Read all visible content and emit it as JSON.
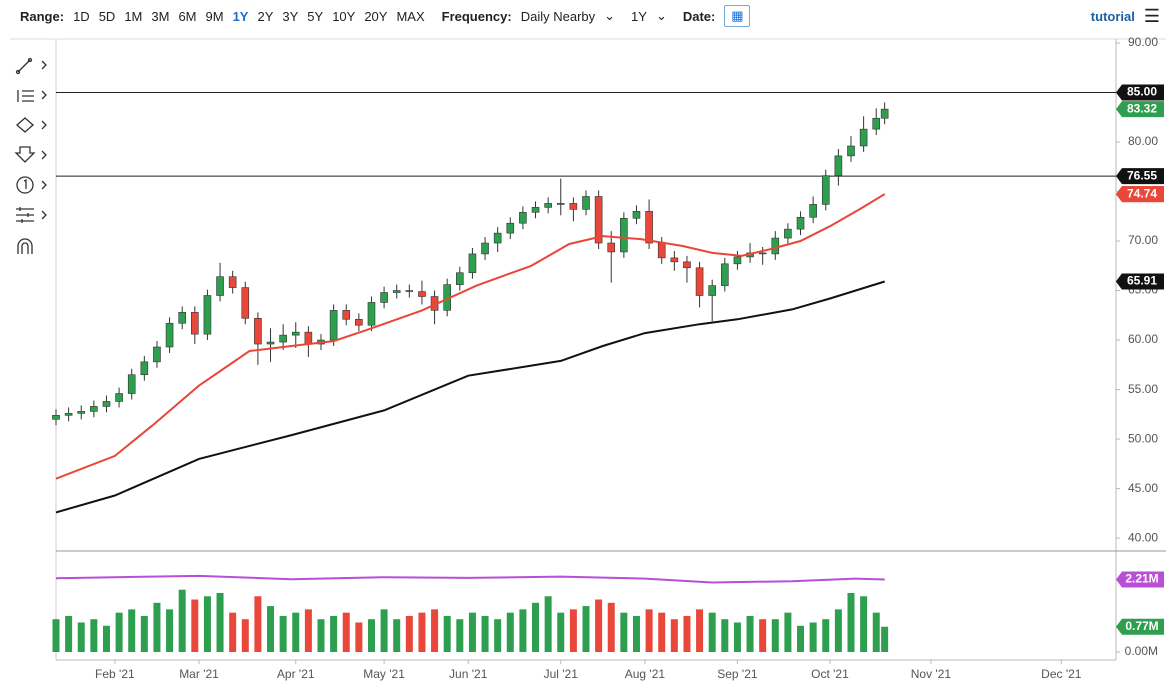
{
  "toolbar": {
    "range_label": "Range:",
    "ranges": [
      "1D",
      "5D",
      "1M",
      "3M",
      "6M",
      "9M",
      "1Y",
      "2Y",
      "3Y",
      "5Y",
      "10Y",
      "20Y",
      "MAX"
    ],
    "active_range": "1Y",
    "frequency_label": "Frequency:",
    "frequency": "Daily Nearby",
    "period": "1Y",
    "date_label": "Date:",
    "tutorial": "tutorial"
  },
  "chart_data": [
    {
      "type": "candlestick",
      "x": [
        0,
        3,
        6,
        9,
        12,
        15,
        18,
        21,
        24,
        27,
        30,
        33,
        36,
        39,
        42,
        45,
        48,
        51,
        54,
        57,
        60,
        63,
        66,
        69,
        72,
        75,
        78,
        81,
        84,
        87,
        90,
        93,
        96,
        99,
        102,
        105,
        108,
        111,
        114,
        117,
        120,
        123,
        126,
        129,
        132,
        135,
        138,
        141,
        144,
        147,
        150,
        153,
        156,
        159,
        162,
        165,
        168,
        171,
        174,
        177,
        180,
        183,
        186,
        189,
        192,
        195,
        197
      ],
      "open": [
        52.0,
        52.4,
        52.6,
        52.8,
        53.3,
        53.8,
        54.6,
        56.5,
        57.8,
        59.3,
        61.7,
        62.8,
        60.6,
        64.5,
        66.4,
        65.3,
        62.2,
        59.6,
        59.8,
        60.5,
        60.8,
        59.6,
        60,
        63,
        62.1,
        61.5,
        63.8,
        64.8,
        65,
        64.9,
        64.4,
        63,
        65.6,
        66.8,
        68.7,
        69.8,
        70.8,
        71.8,
        72.9,
        73.4,
        73.8,
        73.8,
        73.2,
        74.5,
        69.8,
        68.9,
        72.3,
        73,
        69.8,
        68.3,
        67.9,
        67.3,
        64.5,
        65.5,
        67.7,
        68.4,
        68.8,
        68.7,
        70.3,
        71.2,
        72.4,
        73.7,
        76.6,
        78.6,
        79.6,
        81.3,
        82.4
      ],
      "high": [
        53.0,
        53.2,
        53.4,
        53.9,
        54.4,
        55.2,
        57.1,
        58.4,
        59.9,
        62.3,
        63.4,
        63.4,
        65.1,
        67.8,
        67.0,
        65.9,
        62.8,
        61.2,
        61.6,
        61.8,
        61.4,
        60.6,
        63.6,
        63.6,
        62.7,
        64.4,
        65.4,
        65.6,
        65.6,
        66.0,
        65.0,
        66.2,
        67.4,
        69.3,
        70.4,
        71.4,
        72.4,
        73.5,
        74.0,
        74.4,
        76.3,
        74.4,
        75.1,
        75.1,
        71.0,
        72.9,
        73.6,
        74.2,
        70.4,
        69.0,
        68.5,
        67.9,
        66.1,
        68.3,
        69.0,
        69.8,
        69.4,
        71.0,
        71.8,
        73.0,
        74.5,
        77.2,
        79.3,
        80.6,
        82.6,
        83.4,
        84.0
      ],
      "low": [
        51.4,
        51.8,
        52.0,
        52.2,
        52.7,
        53.2,
        54.0,
        55.9,
        57.2,
        58.7,
        61.1,
        59.6,
        60.0,
        63.9,
        64.7,
        61.6,
        57.5,
        57.8,
        59.0,
        59.2,
        58.3,
        59.0,
        59.4,
        61.5,
        60.9,
        60.9,
        63.2,
        64.2,
        64.3,
        63.6,
        61.6,
        62.4,
        65.0,
        66.2,
        68.1,
        68.9,
        70.2,
        71.2,
        72.3,
        72.8,
        72.6,
        72.0,
        72.6,
        69.2,
        65.8,
        68.3,
        71.7,
        69.2,
        67.7,
        67.0,
        65.8,
        63.3,
        61.9,
        64.9,
        67.1,
        67.8,
        67.6,
        68.1,
        69.7,
        70.6,
        71.8,
        73.1,
        75.6,
        78.0,
        79.0,
        80.7,
        81.8
      ],
      "close": [
        52.4,
        52.6,
        52.8,
        53.3,
        53.8,
        54.6,
        56.5,
        57.8,
        59.3,
        61.7,
        62.8,
        60.6,
        64.5,
        66.4,
        65.3,
        62.2,
        59.6,
        59.8,
        60.5,
        60.8,
        59.6,
        60,
        63,
        62.1,
        61.5,
        63.8,
        64.8,
        65,
        64.9,
        64.4,
        63,
        65.6,
        66.8,
        68.7,
        69.8,
        70.8,
        71.8,
        72.9,
        73.4,
        73.8,
        73.8,
        73.2,
        74.5,
        69.8,
        68.9,
        72.3,
        73,
        69.8,
        68.3,
        67.9,
        67.3,
        64.5,
        65.5,
        67.7,
        68.4,
        68.8,
        68.7,
        70.3,
        71.2,
        72.4,
        73.7,
        76.6,
        78.6,
        79.6,
        81.3,
        82.4,
        83.32
      ],
      "up_color": "#2e9e4f",
      "down_color": "#e8473a",
      "xlim": [
        0,
        252
      ],
      "ylim": [
        38.8,
        90.1
      ],
      "xticks": [
        {
          "value": 14,
          "label": "Feb '21"
        },
        {
          "value": 34,
          "label": "Mar '21"
        },
        {
          "value": 57,
          "label": "Apr '21"
        },
        {
          "value": 78,
          "label": "May '21"
        },
        {
          "value": 98,
          "label": "Jun '21"
        },
        {
          "value": 120,
          "label": "Jul '21"
        },
        {
          "value": 140,
          "label": "Aug '21"
        },
        {
          "value": 162,
          "label": "Sep '21"
        },
        {
          "value": 184,
          "label": "Oct '21"
        },
        {
          "value": 208,
          "label": "Nov '21"
        },
        {
          "value": 239,
          "label": "Dec '21"
        }
      ],
      "yticks": [
        {
          "value": 40,
          "label": "40.00"
        },
        {
          "value": 45,
          "label": "45.00"
        },
        {
          "value": 50,
          "label": "50.00"
        },
        {
          "value": 55,
          "label": "55.00"
        },
        {
          "value": 60,
          "label": "60.00"
        },
        {
          "value": 65,
          "label": "65.00"
        },
        {
          "value": 70,
          "label": "70.00"
        },
        {
          "value": 75,
          "label": "75.00"
        },
        {
          "value": 80,
          "label": "80.00"
        },
        {
          "value": 90,
          "label": "90.00"
        }
      ],
      "hlines": [
        {
          "value": 85,
          "label": "85.00"
        },
        {
          "value": 76.55,
          "label": "76.55"
        }
      ],
      "lines": [
        {
          "color": "#e8473a",
          "x": [
            0,
            14,
            23,
            34,
            46,
            56,
            66,
            73,
            87,
            100,
            113,
            122,
            130,
            139,
            149,
            156,
            163,
            170,
            177,
            184,
            191,
            197
          ],
          "values": [
            46.0,
            48.3,
            51.4,
            55.4,
            58.9,
            59.4,
            59.9,
            60.9,
            63.0,
            65.5,
            67.5,
            69.7,
            70.5,
            70.2,
            69.5,
            68.8,
            68.5,
            69.2,
            70.0,
            71.5,
            73.2,
            74.74
          ]
        },
        {
          "color": "#111111",
          "x": [
            0,
            14,
            34,
            56,
            78,
            98,
            120,
            130,
            140,
            153,
            162,
            175,
            184,
            197
          ],
          "values": [
            42.6,
            44.3,
            48.0,
            50.4,
            52.9,
            56.4,
            57.9,
            59.4,
            60.7,
            61.6,
            62.1,
            63.1,
            64.2,
            65.91
          ]
        }
      ]
    },
    {
      "type": "volume",
      "values": [
        1.0,
        1.1,
        0.9,
        1.0,
        0.8,
        1.2,
        1.3,
        1.1,
        1.5,
        1.3,
        1.9,
        1.6,
        1.7,
        1.8,
        1.2,
        1.0,
        1.7,
        1.4,
        1.1,
        1.2,
        1.3,
        1.0,
        1.1,
        1.2,
        0.9,
        1.0,
        1.3,
        1.0,
        1.1,
        1.2,
        1.3,
        1.1,
        1.0,
        1.2,
        1.1,
        1.0,
        1.2,
        1.3,
        1.5,
        1.7,
        1.2,
        1.3,
        1.4,
        1.6,
        1.5,
        1.2,
        1.1,
        1.3,
        1.2,
        1.0,
        1.1,
        1.3,
        1.2,
        1.0,
        0.9,
        1.1,
        1.0,
        1.0,
        1.2,
        0.8,
        0.9,
        1.0,
        1.3,
        1.8,
        1.7,
        1.2,
        0.77
      ],
      "value_labels": [
        null,
        null,
        null,
        null,
        null,
        null,
        null,
        null,
        null,
        null,
        null,
        null,
        null,
        null,
        null,
        null,
        null,
        null,
        null,
        null,
        null,
        null,
        null,
        null,
        null,
        null,
        null,
        null,
        null,
        null,
        null,
        null,
        null,
        null,
        null,
        null,
        null,
        null,
        null,
        null,
        null,
        null,
        null,
        null,
        null,
        null,
        null,
        null,
        null,
        null,
        null,
        null,
        null,
        null,
        null,
        null,
        null,
        null,
        null,
        null,
        null,
        null,
        null,
        null,
        null,
        null,
        "0.77M"
      ],
      "ylim": [
        0,
        3.05
      ],
      "yticks": [
        {
          "value": 0,
          "label": "0.00M"
        }
      ],
      "lines": [
        {
          "color": "#b84fd6",
          "x": [
            0,
            14,
            34,
            56,
            78,
            98,
            120,
            140,
            156,
            175,
            190,
            197
          ],
          "values": [
            2.25,
            2.28,
            2.32,
            2.22,
            2.28,
            2.26,
            2.3,
            2.24,
            2.12,
            2.16,
            2.24,
            2.21
          ],
          "value_labels": [
            null,
            null,
            null,
            null,
            null,
            null,
            null,
            null,
            null,
            null,
            null,
            "2.21M"
          ]
        }
      ]
    }
  ]
}
